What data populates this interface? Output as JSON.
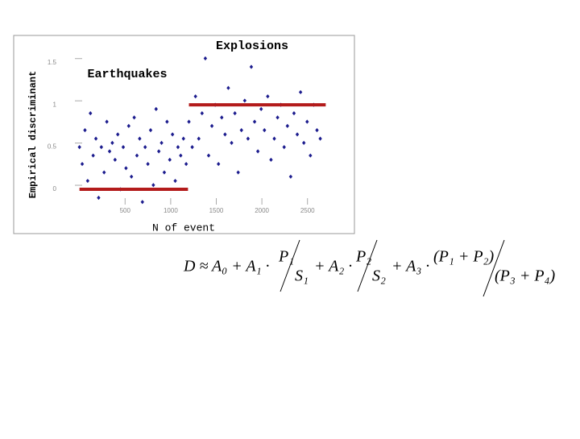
{
  "chart_data": {
    "type": "scatter",
    "title": "Explosions",
    "annotation": "Earthquakes",
    "ylabel": "Empirical discriminant",
    "xlabel": "N of event",
    "xlim": [
      -50,
      2900
    ],
    "ylim": [
      -0.2,
      1.65
    ],
    "xticks": [
      500,
      1000,
      1500,
      2000,
      2500
    ],
    "yticks": [
      1.5,
      1,
      0.5,
      0
    ],
    "reference_lines": [
      {
        "x": [
          0,
          1190
        ],
        "y": [
          0,
          0
        ],
        "color": "#b31b1b"
      },
      {
        "x": [
          1200,
          2700
        ],
        "y": [
          1,
          1
        ],
        "color": "#b31b1b"
      }
    ],
    "series": [
      {
        "color": "#1c1c8e",
        "x": [
          0,
          30,
          60,
          90,
          120,
          150,
          180,
          210,
          240,
          270,
          300,
          330,
          360,
          390,
          420,
          450,
          480,
          510,
          540,
          570,
          600,
          630,
          660,
          690,
          720,
          750,
          780,
          810,
          840,
          870,
          900,
          930,
          960,
          990,
          1020,
          1050,
          1080,
          1110,
          1140,
          1170
        ],
        "y": [
          0.5,
          0.3,
          0.7,
          0.1,
          0.9,
          0.4,
          0.6,
          -0.1,
          0.5,
          0.2,
          0.8,
          0.45,
          0.55,
          0.35,
          0.65,
          0.0,
          0.5,
          0.25,
          0.75,
          0.15,
          0.85,
          0.4,
          0.6,
          -0.15,
          0.5,
          0.3,
          0.7,
          0.05,
          0.95,
          0.45,
          0.55,
          0.2,
          0.8,
          0.35,
          0.65,
          0.1,
          0.5,
          0.4,
          0.6,
          0.3
        ]
      },
      {
        "color": "#1c1c8e",
        "x": [
          1200,
          1236,
          1272,
          1308,
          1344,
          1380,
          1416,
          1452,
          1488,
          1524,
          1560,
          1596,
          1632,
          1668,
          1704,
          1740,
          1776,
          1812,
          1848,
          1884,
          1920,
          1956,
          1992,
          2028,
          2064,
          2100,
          2136,
          2172,
          2208,
          2244,
          2280,
          2316,
          2352,
          2388,
          2424,
          2460,
          2496,
          2532,
          2568,
          2604,
          2640
        ],
        "y": [
          0.8,
          0.5,
          1.1,
          0.6,
          0.9,
          1.55,
          0.4,
          0.75,
          1.0,
          0.3,
          0.85,
          0.65,
          1.2,
          0.55,
          0.9,
          0.2,
          0.7,
          1.05,
          0.6,
          1.45,
          0.8,
          0.45,
          0.95,
          0.7,
          1.1,
          0.35,
          0.6,
          0.85,
          1.0,
          0.5,
          0.75,
          0.15,
          0.9,
          0.65,
          1.15,
          0.55,
          0.8,
          0.4,
          1.0,
          0.7,
          0.6
        ]
      }
    ],
    "formula": {
      "lhs": "D ≈ A₀ + A₁ ·",
      "n1": "P₁",
      "d1": "S₁",
      "op2": "+ A₂ ·",
      "n2": "P₂",
      "d2": "S₂",
      "op3": "+ A₃ ·",
      "n3": "(P₁ + P₂)",
      "d3": "(P₃ + P₄)"
    }
  }
}
